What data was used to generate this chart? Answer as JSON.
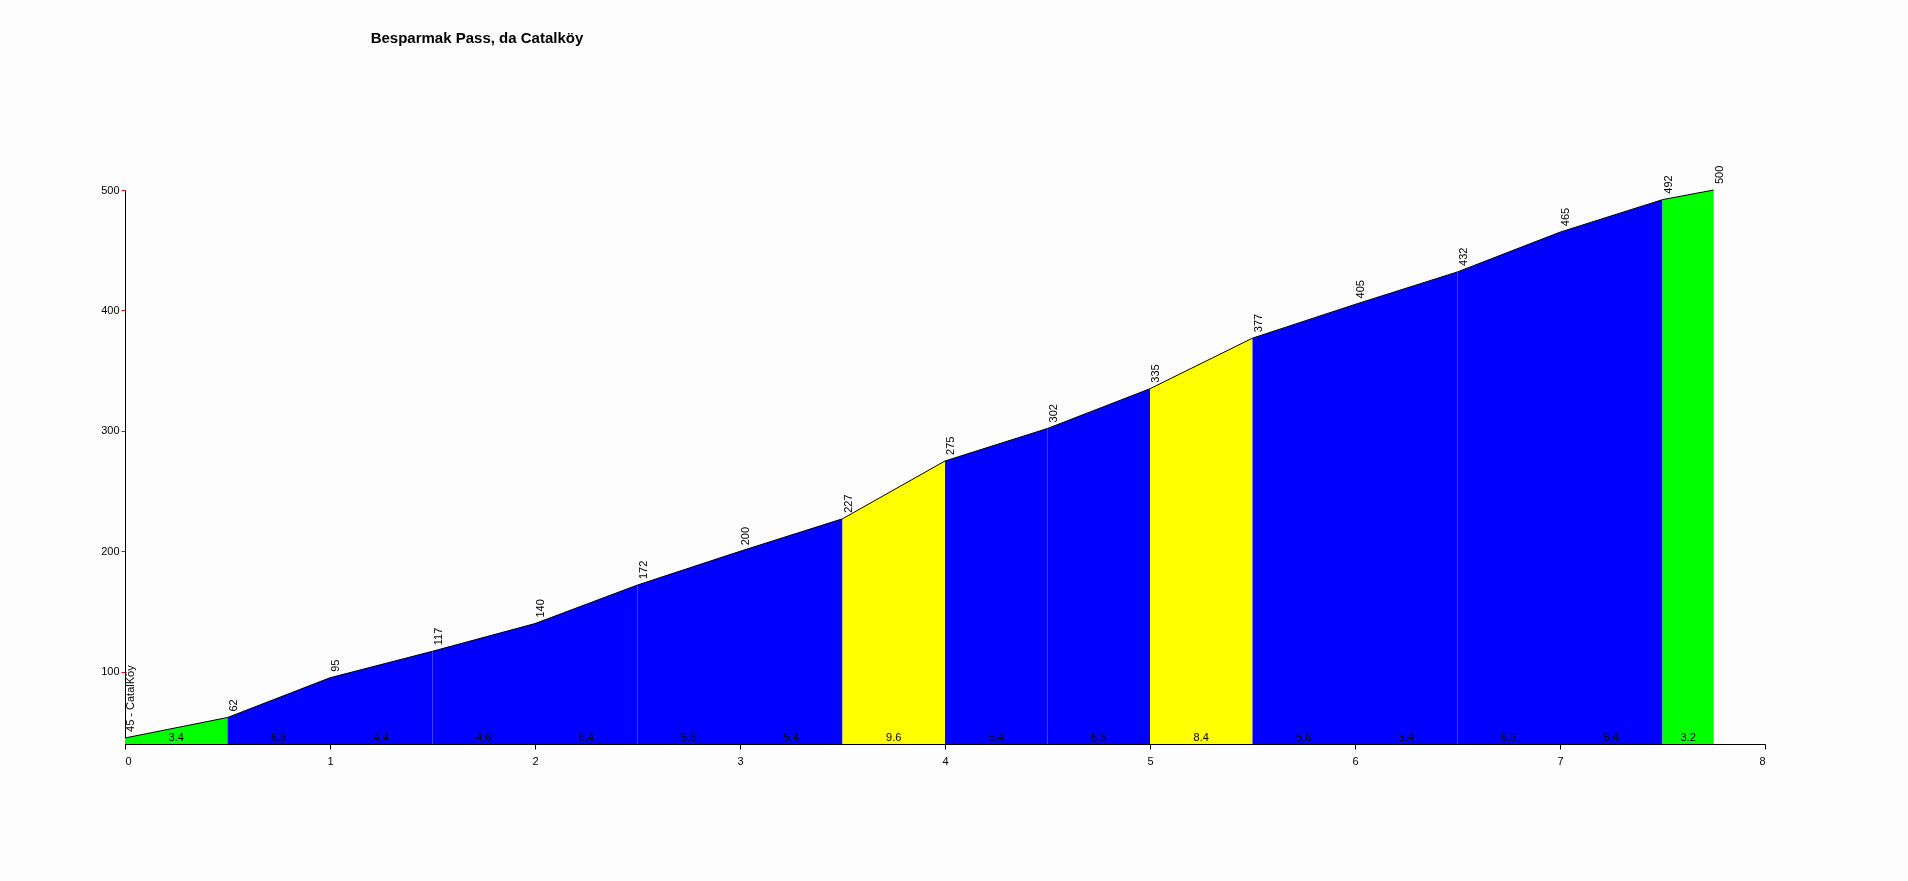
{
  "chart_data": {
    "type": "area",
    "title": "Besparmak Pass, da Catalköy",
    "xlim": [
      0,
      8
    ],
    "xticks": [
      0,
      1,
      2,
      3,
      4,
      5,
      6,
      7,
      8
    ],
    "ylim": [
      40,
      500
    ],
    "yticks": [
      100,
      200,
      300,
      400,
      500
    ],
    "grid": false,
    "legend": false,
    "series": [
      {
        "type": "line",
        "color": "#000000",
        "x": [
          0,
          0.5,
          1,
          1.5,
          2,
          2.5,
          3,
          3.5,
          4,
          4.5,
          5,
          5.5,
          6,
          6.5,
          7,
          7.5,
          7.75
        ],
        "values": [
          45,
          62,
          95,
          117,
          140,
          172,
          200,
          227,
          275,
          302,
          335,
          377,
          405,
          432,
          465,
          492,
          500
        ],
        "value_labels": [
          "45 - CatalKöy",
          "62",
          "95",
          "117",
          "140",
          "172",
          "200",
          "227",
          "275",
          "302",
          "335",
          "377",
          "405",
          "432",
          "465",
          "492",
          "500"
        ]
      },
      {
        "color": "#00ff00",
        "x": [
          0,
          0.5
        ],
        "values": [
          45,
          62
        ]
      },
      {
        "color": "#0000ff",
        "x": [
          0.5,
          1
        ],
        "values": [
          62,
          95
        ]
      },
      {
        "color": "#0000ff",
        "x": [
          1,
          1.5
        ],
        "values": [
          95,
          117
        ]
      },
      {
        "color": "#0000ff",
        "x": [
          1.5,
          2
        ],
        "values": [
          117,
          140
        ]
      },
      {
        "color": "#0000ff",
        "x": [
          2,
          2.5
        ],
        "values": [
          140,
          172
        ]
      },
      {
        "color": "#0000ff",
        "x": [
          2.5,
          3
        ],
        "values": [
          172,
          200
        ]
      },
      {
        "color": "#0000ff",
        "x": [
          3,
          3.5
        ],
        "values": [
          200,
          227
        ]
      },
      {
        "color": "#ffff00",
        "x": [
          3.5,
          4
        ],
        "values": [
          227,
          275
        ]
      },
      {
        "color": "#0000ff",
        "x": [
          4,
          4.5
        ],
        "values": [
          275,
          302
        ]
      },
      {
        "color": "#0000ff",
        "x": [
          4.5,
          5
        ],
        "values": [
          302,
          335
        ]
      },
      {
        "color": "#ffff00",
        "x": [
          5,
          5.5
        ],
        "values": [
          335,
          377
        ]
      },
      {
        "color": "#0000ff",
        "x": [
          5.5,
          6
        ],
        "values": [
          377,
          405
        ]
      },
      {
        "color": "#0000ff",
        "x": [
          6,
          6.5
        ],
        "values": [
          405,
          432
        ]
      },
      {
        "color": "#0000ff",
        "x": [
          6.5,
          7
        ],
        "values": [
          432,
          465
        ]
      },
      {
        "color": "#0000ff",
        "x": [
          7,
          7.5
        ],
        "values": [
          465,
          492
        ]
      },
      {
        "color": "#00ff00",
        "x": [
          7.5,
          7.75
        ],
        "values": [
          492,
          500
        ]
      }
    ],
    "annotations": [
      {
        "text": "3.4",
        "x": 0.25,
        "y": 40
      },
      {
        "text": "6.6",
        "x": 0.75,
        "y": 40
      },
      {
        "text": "4.4",
        "x": 1.25,
        "y": 40
      },
      {
        "text": "4.6",
        "x": 1.75,
        "y": 40
      },
      {
        "text": "6.4",
        "x": 2.25,
        "y": 40
      },
      {
        "text": "5.6",
        "x": 2.75,
        "y": 40
      },
      {
        "text": "5.4",
        "x": 3.25,
        "y": 40
      },
      {
        "text": "9.6",
        "x": 3.75,
        "y": 40
      },
      {
        "text": "5.4",
        "x": 4.25,
        "y": 40
      },
      {
        "text": "6.6",
        "x": 4.75,
        "y": 40
      },
      {
        "text": "8.4",
        "x": 5.25,
        "y": 40
      },
      {
        "text": "5.6",
        "x": 5.75,
        "y": 40
      },
      {
        "text": "5.4",
        "x": 6.25,
        "y": 40
      },
      {
        "text": "6.6",
        "x": 6.75,
        "y": 40
      },
      {
        "text": "5.4",
        "x": 7.25,
        "y": 40
      },
      {
        "text": "3.2",
        "x": 7.625,
        "y": 40
      }
    ]
  }
}
